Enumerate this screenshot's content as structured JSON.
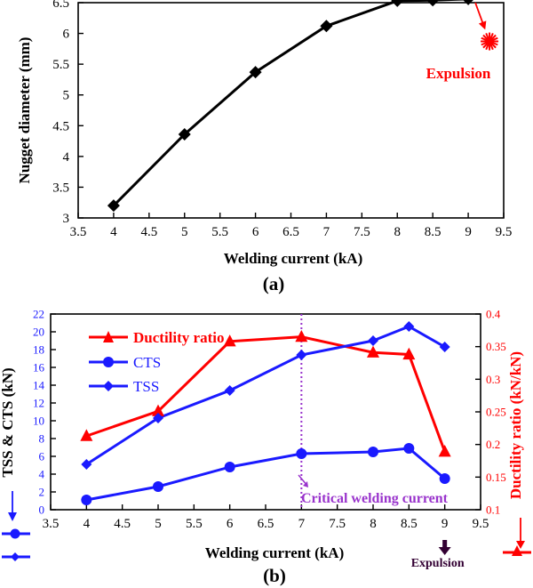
{
  "chart_data": [
    {
      "type": "line",
      "panel_label": "(a)",
      "title": "",
      "xlabel": "Welding current (kA)",
      "ylabel": "Nugget diameter (mm)",
      "xlim": [
        3.5,
        9.5
      ],
      "ylim": [
        3,
        6.5
      ],
      "x_ticks": [
        "3.5",
        "4",
        "4.5",
        "5",
        "5.5",
        "6",
        "6.5",
        "7",
        "7.5",
        "8",
        "8.5",
        "9",
        "9.5"
      ],
      "y_ticks": [
        "3",
        "3.5",
        "4",
        "4.5",
        "5",
        "5.5",
        "6",
        "6.5"
      ],
      "grid": false,
      "series": [
        {
          "name": "Nugget diameter",
          "color": "#000000",
          "marker": "diamond",
          "x": [
            4,
            5,
            6,
            7,
            8,
            8.5,
            9
          ],
          "values": [
            3.2,
            4.36,
            5.37,
            6.12,
            6.53,
            6.54,
            6.56
          ]
        }
      ],
      "annotation": {
        "text": "Expulsion",
        "color": "#ff0000",
        "symbol": "starburst",
        "at": [
          9.3,
          5.87
        ],
        "arrow_from": [
          9.1,
          6.5
        ]
      }
    },
    {
      "type": "line",
      "panel_label": "(b)",
      "title": "",
      "xlabel": "Welding current (kA)",
      "ylabel_left": "TSS & CTS (kN)",
      "ylabel_right": "Ductility ratio (kN/kN)",
      "xlim": [
        3.5,
        9.5
      ],
      "ylim_left": [
        0,
        22
      ],
      "ylim_right": [
        0.1,
        0.4
      ],
      "x_ticks": [
        "3.5",
        "4",
        "4.5",
        "5",
        "5.5",
        "6",
        "6.5",
        "7",
        "7.5",
        "8",
        "8.5",
        "9",
        "9.5"
      ],
      "y_ticks_left": [
        "0",
        "2",
        "4",
        "6",
        "8",
        "10",
        "12",
        "14",
        "16",
        "18",
        "20",
        "22"
      ],
      "y_ticks_right": [
        "0.1",
        "0.15",
        "0.2",
        "0.25",
        "0.3",
        "0.35",
        "0.4"
      ],
      "grid": false,
      "legend_position": "top-left",
      "series": [
        {
          "name": "Ductility ratio",
          "axis": "right",
          "color": "#ff0000",
          "marker": "triangle",
          "x": [
            4,
            5,
            6,
            7,
            8,
            8.5,
            9
          ],
          "values": [
            0.213,
            0.251,
            0.358,
            0.365,
            0.341,
            0.338,
            0.189
          ]
        },
        {
          "name": "CTS",
          "axis": "left",
          "color": "#1a1aff",
          "marker": "circle",
          "x": [
            4,
            5,
            6,
            7,
            8,
            8.5,
            9
          ],
          "values": [
            1.1,
            2.6,
            4.8,
            6.3,
            6.5,
            6.9,
            3.5
          ]
        },
        {
          "name": "TSS",
          "axis": "left",
          "color": "#1a1aff",
          "marker": "diamond",
          "x": [
            4,
            5,
            6,
            7,
            8,
            8.5,
            9
          ],
          "values": [
            5.1,
            10.3,
            13.4,
            17.4,
            19.0,
            20.6,
            18.3
          ]
        }
      ],
      "critical_line": {
        "x": 7,
        "color": "#9933cc",
        "label": "Critical welding current"
      },
      "expulsion": {
        "text": "Expulsion",
        "color": "#330033",
        "x": 9
      }
    }
  ]
}
